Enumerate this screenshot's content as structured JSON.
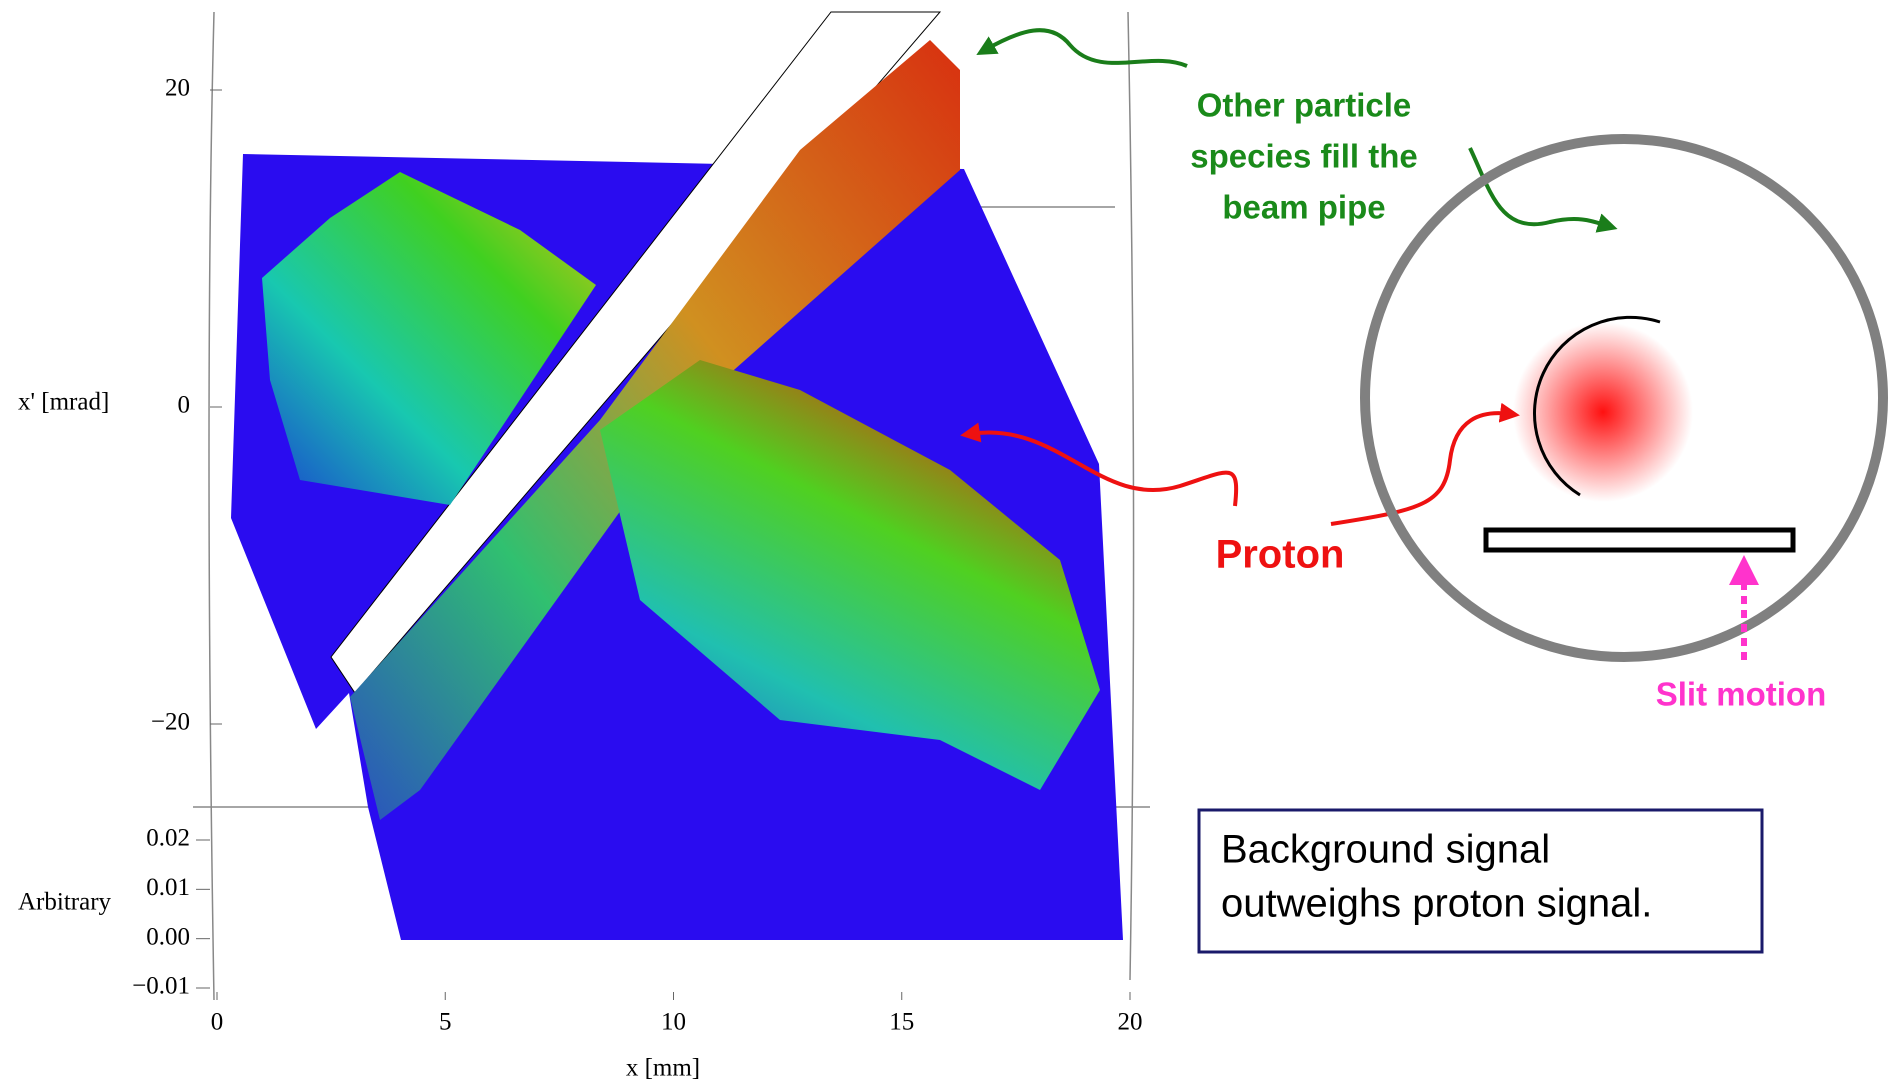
{
  "chart_data": {
    "type": "surface",
    "x_label": "x [mm]",
    "y_label": "x' [mrad]",
    "z_label": "Arbitrary",
    "xlim": [
      0,
      20
    ],
    "xticks": [
      0,
      5,
      10,
      15,
      20
    ],
    "ylim": [
      -20,
      20
    ],
    "yticks": [
      {
        "value": -20,
        "label": "−20"
      },
      0,
      20
    ],
    "zlim": [
      -0.01,
      0.02
    ],
    "zticks": [
      {
        "value": 0.02,
        "label": "0.02"
      },
      {
        "value": 0.01,
        "label": "0.01"
      },
      {
        "value": 0,
        "label": "0.00"
      },
      {
        "value": -0.01,
        "label": "−0.01"
      }
    ],
    "annotations": {
      "other_species": [
        "Other particle",
        "species fill the",
        "beam pipe"
      ],
      "proton": "Proton",
      "slit_motion": "Slit motion",
      "background_note": [
        "Background signal",
        "outweighs proton signal."
      ]
    }
  }
}
